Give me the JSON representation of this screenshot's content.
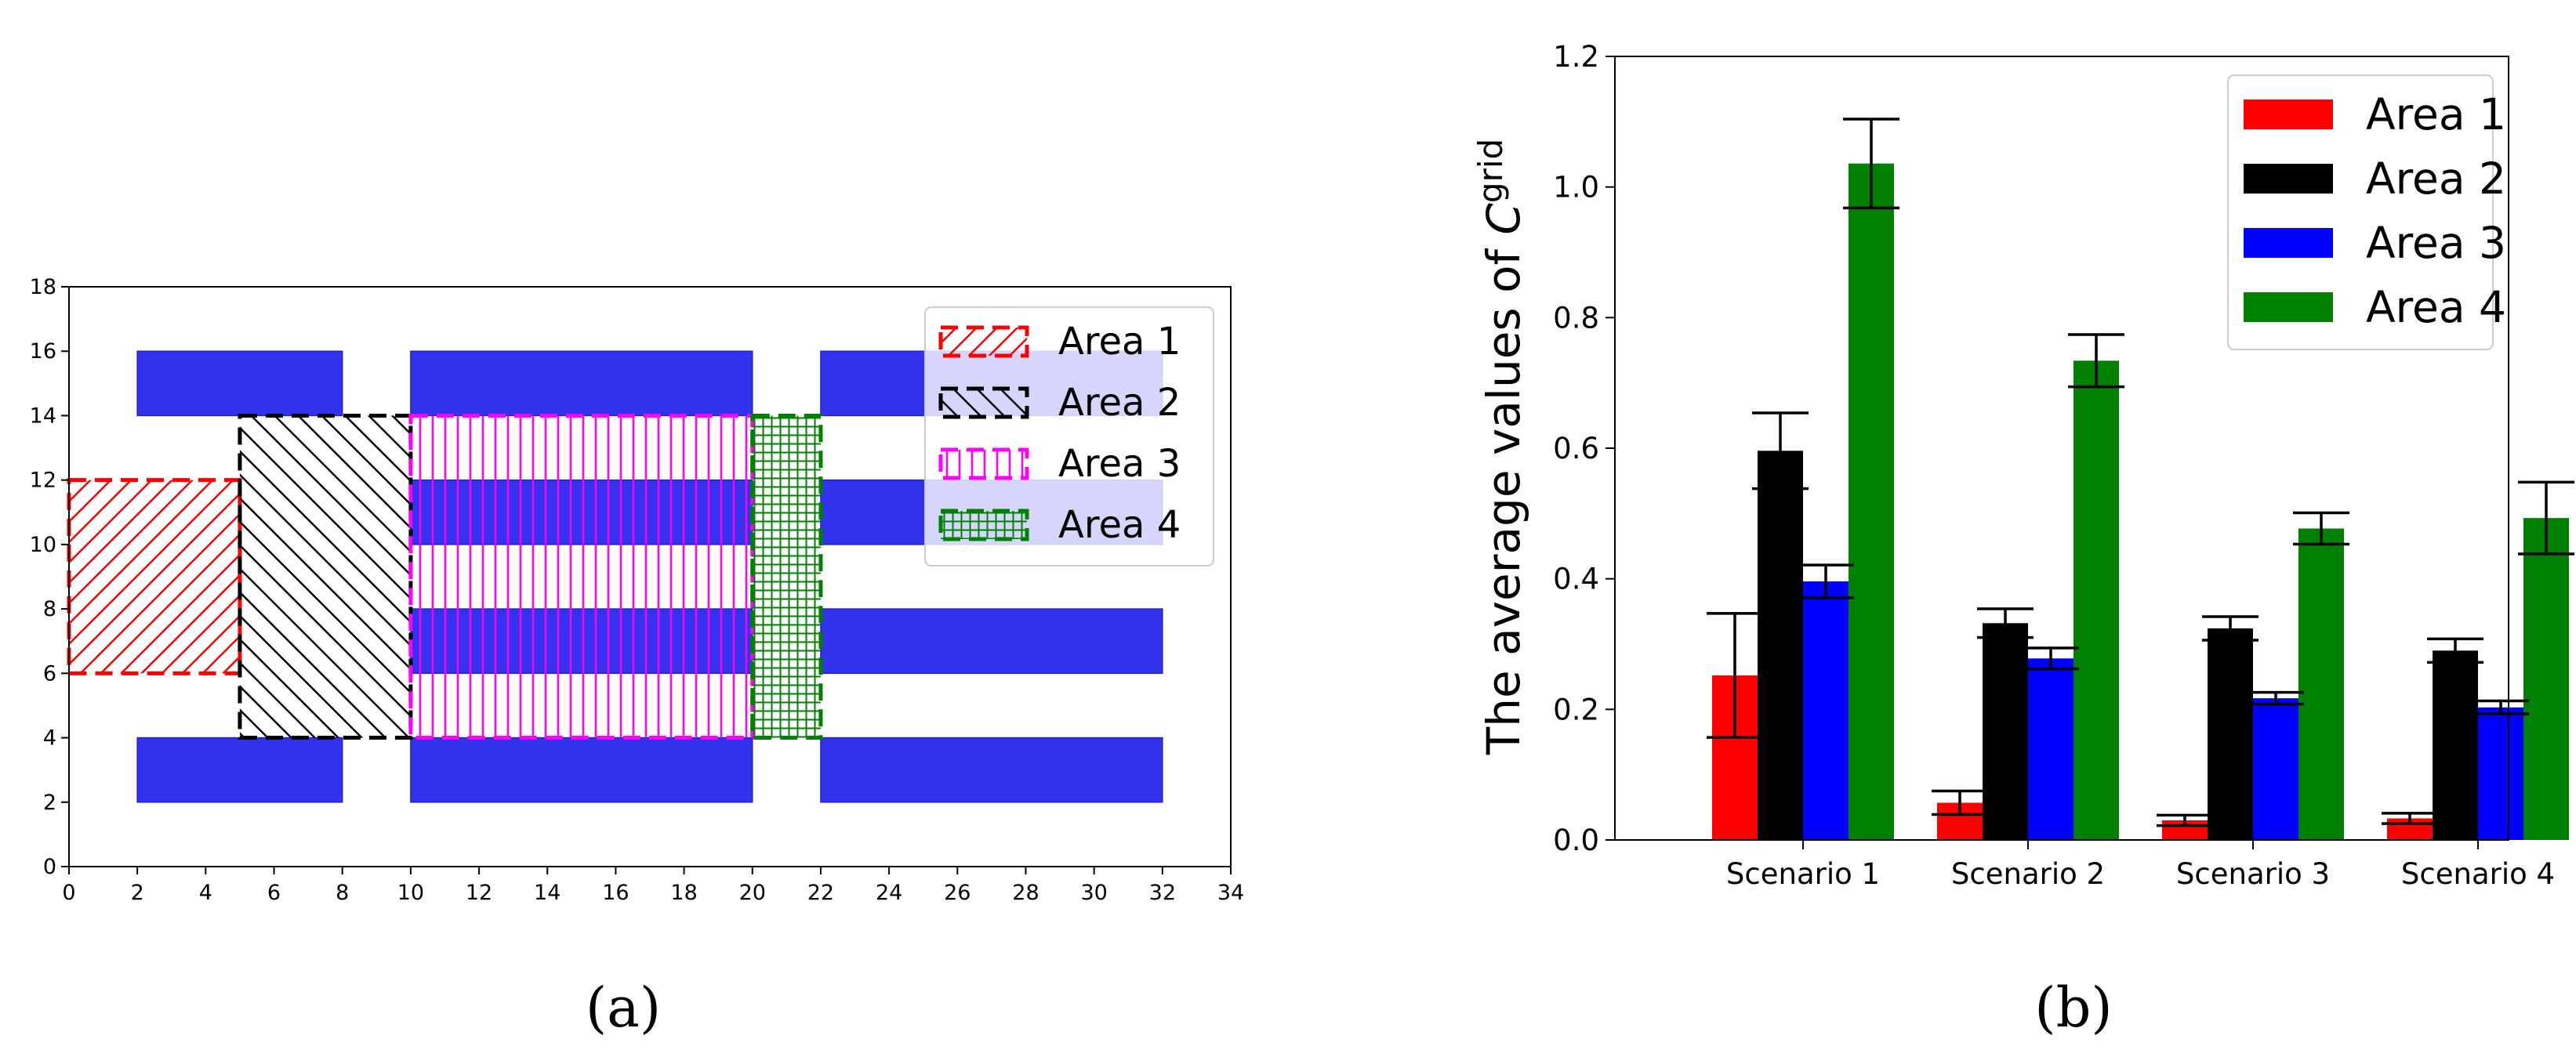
{
  "chart_data": [
    {
      "type": "area-map",
      "caption": "(a)",
      "xlim": [
        0,
        34
      ],
      "ylim": [
        0,
        18
      ],
      "x_ticks": [
        "0",
        "2",
        "4",
        "6",
        "8",
        "10",
        "12",
        "14",
        "16",
        "18",
        "20",
        "22",
        "24",
        "26",
        "28",
        "30",
        "32",
        "34"
      ],
      "y_ticks": [
        "0",
        "2",
        "4",
        "6",
        "8",
        "10",
        "12",
        "14",
        "16",
        "18"
      ],
      "blocks": [
        {
          "x0": 2,
          "x1": 8,
          "y0": 2,
          "y1": 4
        },
        {
          "x0": 2,
          "x1": 8,
          "y0": 14,
          "y1": 16
        },
        {
          "x0": 10,
          "x1": 20,
          "y0": 2,
          "y1": 4
        },
        {
          "x0": 10,
          "x1": 20,
          "y0": 6,
          "y1": 8
        },
        {
          "x0": 10,
          "x1": 20,
          "y0": 10,
          "y1": 12
        },
        {
          "x0": 10,
          "x1": 20,
          "y0": 14,
          "y1": 16
        },
        {
          "x0": 22,
          "x1": 32,
          "y0": 2,
          "y1": 4
        },
        {
          "x0": 22,
          "x1": 32,
          "y0": 6,
          "y1": 8
        },
        {
          "x0": 22,
          "x1": 32,
          "y0": 10,
          "y1": 12
        },
        {
          "x0": 22,
          "x1": 32,
          "y0": 14,
          "y1": 16
        }
      ],
      "areas": [
        {
          "name": "Area 1",
          "color": "#ff0000",
          "hatch": "diagonal",
          "x0": 0,
          "x1": 5,
          "y0": 6,
          "y1": 12
        },
        {
          "name": "Area 2",
          "color": "#000000",
          "hatch": "anti-diagonal",
          "x0": 5,
          "x1": 10,
          "y0": 4,
          "y1": 14
        },
        {
          "name": "Area 3",
          "color": "#ff00ff",
          "hatch": "vertical",
          "x0": 10,
          "x1": 20,
          "y0": 4,
          "y1": 14
        },
        {
          "name": "Area 4",
          "color": "#008000",
          "hatch": "grid",
          "x0": 20,
          "x1": 22,
          "y0": 4,
          "y1": 14
        }
      ],
      "legend_position": "top-right"
    },
    {
      "type": "bar",
      "caption": "(b)",
      "ylabel_prefix": "The average values of ",
      "ylabel_symbol": "C",
      "ylabel_sup": "grid",
      "categories": [
        "Scenario 1",
        "Scenario 2",
        "Scenario 3",
        "Scenario 4"
      ],
      "ylim": [
        0,
        1.2
      ],
      "y_ticks": [
        "0.0",
        "0.2",
        "0.4",
        "0.6",
        "0.8",
        "1.0",
        "1.2"
      ],
      "series": [
        {
          "name": "Area 1",
          "color": "#ff0000",
          "values": [
            0.252,
            0.057,
            0.03,
            0.033
          ],
          "errors": [
            0.095,
            0.018,
            0.008,
            0.008
          ]
        },
        {
          "name": "Area 2",
          "color": "#000000",
          "values": [
            0.596,
            0.332,
            0.324,
            0.29
          ],
          "errors": [
            0.058,
            0.022,
            0.018,
            0.018
          ]
        },
        {
          "name": "Area 3",
          "color": "#0000ff",
          "values": [
            0.396,
            0.278,
            0.217,
            0.203
          ],
          "errors": [
            0.025,
            0.016,
            0.009,
            0.01
          ]
        },
        {
          "name": "Area 4",
          "color": "#008000",
          "values": [
            1.036,
            0.734,
            0.477,
            0.493
          ],
          "errors": [
            0.068,
            0.04,
            0.024,
            0.055
          ]
        }
      ],
      "legend_position": "top-right"
    }
  ]
}
